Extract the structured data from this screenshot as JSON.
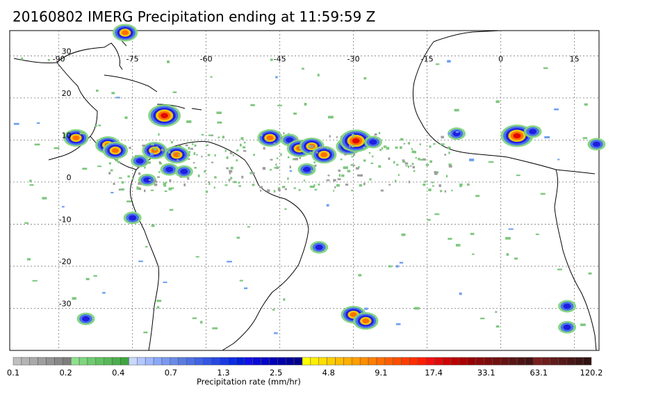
{
  "title": "20160802 IMERG Precipitation ending at 11:59:59 Z",
  "map": {
    "lon_range": [
      -100,
      20
    ],
    "lat_range": [
      -40,
      36
    ],
    "lon_ticks": [
      {
        "value": -90,
        "label": "-90"
      },
      {
        "value": -75,
        "label": "-75"
      },
      {
        "value": -60,
        "label": "-60"
      },
      {
        "value": -45,
        "label": "-45"
      },
      {
        "value": -30,
        "label": "-30"
      },
      {
        "value": -15,
        "label": "-15"
      },
      {
        "value": 0,
        "label": "0"
      },
      {
        "value": 15,
        "label": "15"
      }
    ],
    "lat_ticks": [
      {
        "value": 30,
        "label": "30"
      },
      {
        "value": 20,
        "label": "20"
      },
      {
        "value": 10,
        "label": "10"
      },
      {
        "value": 0,
        "label": "0"
      },
      {
        "value": -10,
        "label": "-10"
      },
      {
        "value": -20,
        "label": "-20"
      },
      {
        "value": -30,
        "label": "-30"
      }
    ],
    "gridlines": true,
    "coastline_color": "#000000",
    "precip_cells": [
      {
        "lon": -68.5,
        "lat": 15.8,
        "level": 3
      },
      {
        "lon": -86.5,
        "lat": 10.5,
        "level": 2
      },
      {
        "lon": -80,
        "lat": 8.8,
        "level": 2
      },
      {
        "lon": -78.5,
        "lat": 7.5,
        "level": 2
      },
      {
        "lon": -70.5,
        "lat": 7.5,
        "level": 2
      },
      {
        "lon": -66,
        "lat": 6.5,
        "level": 2
      },
      {
        "lon": -73.5,
        "lat": 5,
        "level": 1
      },
      {
        "lon": -67.5,
        "lat": 3,
        "level": 1
      },
      {
        "lon": -64.5,
        "lat": 2.5,
        "level": 1
      },
      {
        "lon": -72,
        "lat": 0.5,
        "level": 1
      },
      {
        "lon": -75,
        "lat": -8.5,
        "level": 1
      },
      {
        "lon": -47,
        "lat": 10.5,
        "level": 2
      },
      {
        "lon": -43,
        "lat": 10,
        "level": 1
      },
      {
        "lon": -41,
        "lat": 8,
        "level": 2
      },
      {
        "lon": -38.5,
        "lat": 8.5,
        "level": 2
      },
      {
        "lon": -36,
        "lat": 6.5,
        "level": 2
      },
      {
        "lon": -39.5,
        "lat": 3,
        "level": 1
      },
      {
        "lon": -31,
        "lat": 8.5,
        "level": 2
      },
      {
        "lon": -29.5,
        "lat": 9.8,
        "level": 3
      },
      {
        "lon": -26,
        "lat": 9.5,
        "level": 1
      },
      {
        "lon": -9,
        "lat": 11.5,
        "level": 1
      },
      {
        "lon": 3.3,
        "lat": 11,
        "level": 3
      },
      {
        "lon": 6.5,
        "lat": 12,
        "level": 1
      },
      {
        "lon": 19.5,
        "lat": 9,
        "level": 1
      },
      {
        "lon": -76.5,
        "lat": 35.5,
        "level": 2
      },
      {
        "lon": -37,
        "lat": -15.5,
        "level": 1
      },
      {
        "lon": -30,
        "lat": -31.5,
        "level": 2
      },
      {
        "lon": -27.5,
        "lat": -33,
        "level": 2
      },
      {
        "lon": -84.5,
        "lat": -32.5,
        "level": 1
      },
      {
        "lon": 13.5,
        "lat": -29.5,
        "level": 1
      },
      {
        "lon": 13.5,
        "lat": -34.5,
        "level": 1
      }
    ]
  },
  "legend": {
    "title": "Precipitation rate (mm/hr)",
    "labels": [
      "0.1",
      "0.2",
      "0.4",
      "0.7",
      "1.3",
      "2.5",
      "4.8",
      "9.1",
      "17.4",
      "33.1",
      "63.1",
      "120.2"
    ],
    "colors": [
      "#bfbfbf",
      "#b4b4b4",
      "#a9a9a9",
      "#9e9e9e",
      "#939393",
      "#888888",
      "#7d7d7d",
      "#8ee08e",
      "#7ed67e",
      "#6fcc6f",
      "#62c262",
      "#58b858",
      "#4cae4c",
      "#3fa43f",
      "#c9d8ff",
      "#b4c8ff",
      "#9fb8ff",
      "#8aa8f8",
      "#7a98f0",
      "#6a8ae8",
      "#5a7ce0",
      "#4f70e6",
      "#4163e6",
      "#3356e6",
      "#2548e6",
      "#173ae6",
      "#092ce6",
      "#0020d8",
      "#1010e8",
      "#0a0ad8",
      "#0505c8",
      "#0000b8",
      "#0000a8",
      "#000098",
      "#000088",
      "#ffff00",
      "#ffee00",
      "#ffde00",
      "#ffce00",
      "#ffbe00",
      "#ffae00",
      "#ff9e00",
      "#ff8e00",
      "#ff7e00",
      "#ff6e00",
      "#ff5e00",
      "#ff4e00",
      "#ff3e00",
      "#ff2e00",
      "#ff1e00",
      "#f21010",
      "#e00a0a",
      "#ce0505",
      "#bc0000",
      "#aa0000",
      "#980000",
      "#8a0a0a",
      "#7e0c0c",
      "#721010",
      "#661212",
      "#5a1414",
      "#4e1414",
      "#441212",
      "#7a1e1e",
      "#6e1c1c",
      "#621a1a",
      "#561818",
      "#4a1616",
      "#3e1414",
      "#321212"
    ]
  }
}
